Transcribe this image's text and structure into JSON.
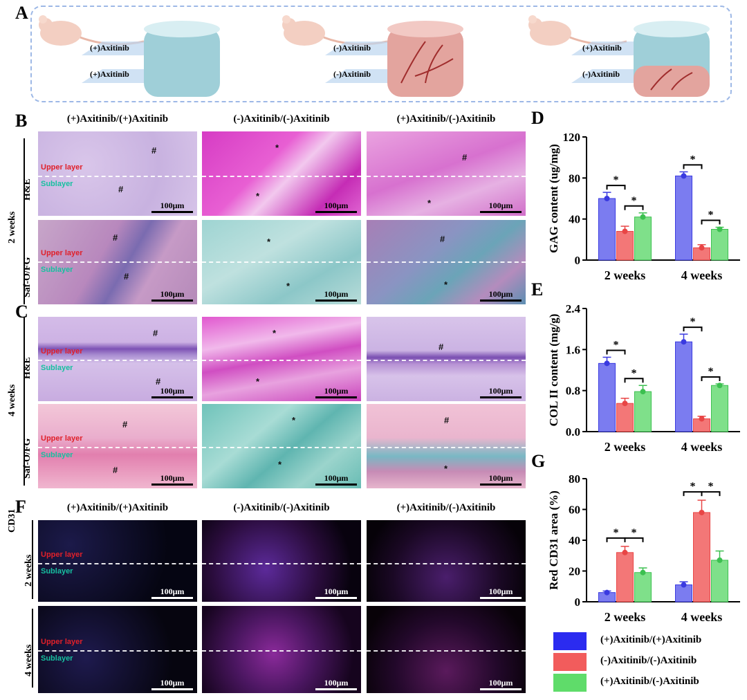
{
  "panels": {
    "A": "A",
    "B": "B",
    "C": "C",
    "D": "D",
    "E": "E",
    "F": "F",
    "G": "G"
  },
  "schematic": {
    "groups": [
      {
        "top_label": "(+)Axitinib",
        "bottom_label": "(+)Axitinib"
      },
      {
        "top_label": "(-)Axitinib",
        "bottom_label": "(-)Axitinib"
      },
      {
        "top_label": "(+)Axitinib",
        "bottom_label": "(-)Axitinib"
      }
    ]
  },
  "column_titles": [
    "(+)Axitinib/(+)Axitinib",
    "(-)Axitinib/(-)Axitinib",
    "(+)Axitinib/(-)Axitinib"
  ],
  "histology": {
    "time_2w": "2 weeks",
    "time_4w": "4 weeks",
    "stain_he": "H&E",
    "stain_saf": "Saf-O/FG",
    "stain_cd31": "CD31",
    "upper_layer": "Upper layer",
    "sublayer": "Sublayer",
    "scale_bar": "100μm",
    "hash": "#",
    "asterisk": "*"
  },
  "colors": {
    "blue": "#7b7cf0",
    "red": "#f37777",
    "green": "#7fe08a"
  },
  "legend": [
    "(+)Axitinib/(+)Axitinib",
    "(-)Axitinib/(-)Axitinib",
    "(+)Axitinib/(-)Axitinib"
  ],
  "chart_data": [
    {
      "id": "D",
      "type": "bar",
      "ylabel": "GAG content (ug/mg)",
      "categories": [
        "2 weeks",
        "4 weeks"
      ],
      "ylim": [
        0,
        120
      ],
      "yticks": [
        0,
        40,
        80,
        120
      ],
      "series": [
        {
          "name": "(+)Axitinib/(+)Axitinib",
          "values": [
            60,
            82
          ],
          "err": [
            6,
            4
          ]
        },
        {
          "name": "(-)Axitinib/(-)Axitinib",
          "values": [
            28,
            12
          ],
          "err": [
            5,
            3
          ]
        },
        {
          "name": "(+)Axitinib/(-)Axitinib",
          "values": [
            42,
            30
          ],
          "err": [
            4,
            2
          ]
        }
      ],
      "significance": "*"
    },
    {
      "id": "E",
      "type": "bar",
      "ylabel": "COL II content (mg/g)",
      "categories": [
        "2 weeks",
        "4 weeks"
      ],
      "ylim": [
        0,
        2.4
      ],
      "yticks": [
        0.0,
        0.8,
        1.6,
        2.4
      ],
      "series": [
        {
          "name": "(+)Axitinib/(+)Axitinib",
          "values": [
            1.33,
            1.75
          ],
          "err": [
            0.12,
            0.15
          ]
        },
        {
          "name": "(-)Axitinib/(-)Axitinib",
          "values": [
            0.55,
            0.25
          ],
          "err": [
            0.1,
            0.05
          ]
        },
        {
          "name": "(+)Axitinib/(-)Axitinib",
          "values": [
            0.78,
            0.9
          ],
          "err": [
            0.12,
            0.03
          ]
        }
      ],
      "significance": "*"
    },
    {
      "id": "G",
      "type": "bar",
      "ylabel": "Red CD31 area (%)",
      "categories": [
        "2 weeks",
        "4 weeks"
      ],
      "ylim": [
        0,
        80
      ],
      "yticks": [
        0,
        20,
        40,
        60,
        80
      ],
      "series": [
        {
          "name": "(+)Axitinib/(+)Axitinib",
          "values": [
            6,
            11
          ],
          "err": [
            1,
            2
          ]
        },
        {
          "name": "(-)Axitinib/(-)Axitinib",
          "values": [
            32,
            58
          ],
          "err": [
            4,
            8
          ]
        },
        {
          "name": "(+)Axitinib/(-)Axitinib",
          "values": [
            19,
            27
          ],
          "err": [
            3,
            6
          ]
        }
      ],
      "significance": "*"
    }
  ]
}
